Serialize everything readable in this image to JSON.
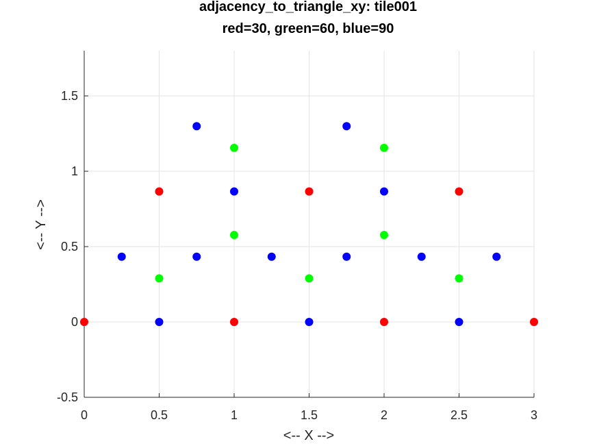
{
  "chart_data": {
    "type": "scatter",
    "title": "adjacency_to_triangle_xy: tile001",
    "subtitle": "red=30, green=60, blue=90",
    "xlabel": "<-- X -->",
    "ylabel": "<-- Y -->",
    "xlim": [
      0,
      3
    ],
    "ylim": [
      -0.5,
      1.8
    ],
    "xticks": [
      0,
      0.5,
      1,
      1.5,
      2,
      2.5,
      3
    ],
    "xtick_labels": [
      "0",
      "0.5",
      "1",
      "1.5",
      "2",
      "2.5",
      "3"
    ],
    "yticks": [
      -0.5,
      0,
      0.5,
      1,
      1.5
    ],
    "ytick_labels": [
      "-0.5",
      "0",
      "0.5",
      "1",
      "1.5"
    ],
    "grid": true,
    "series": [
      {
        "color": "#ff0000",
        "points": [
          [
            0,
            0
          ],
          [
            1,
            0
          ],
          [
            2,
            0
          ],
          [
            3,
            0
          ],
          [
            0.5,
            0.866
          ],
          [
            1.5,
            0.866
          ],
          [
            2.5,
            0.866
          ]
        ]
      },
      {
        "color": "#00ff00",
        "points": [
          [
            0.5,
            0.289
          ],
          [
            1.5,
            0.289
          ],
          [
            2.5,
            0.289
          ],
          [
            1,
            0.577
          ],
          [
            2,
            0.577
          ],
          [
            1,
            1.155
          ],
          [
            2,
            1.155
          ]
        ]
      },
      {
        "color": "#0000ff",
        "points": [
          [
            0.5,
            0
          ],
          [
            1.5,
            0
          ],
          [
            2.5,
            0
          ],
          [
            0.25,
            0.433
          ],
          [
            0.75,
            0.433
          ],
          [
            1.25,
            0.433
          ],
          [
            1.75,
            0.433
          ],
          [
            2.25,
            0.433
          ],
          [
            2.75,
            0.433
          ],
          [
            1,
            0.866
          ],
          [
            2,
            0.866
          ],
          [
            0.75,
            1.299
          ],
          [
            1.75,
            1.299
          ]
        ]
      }
    ]
  }
}
